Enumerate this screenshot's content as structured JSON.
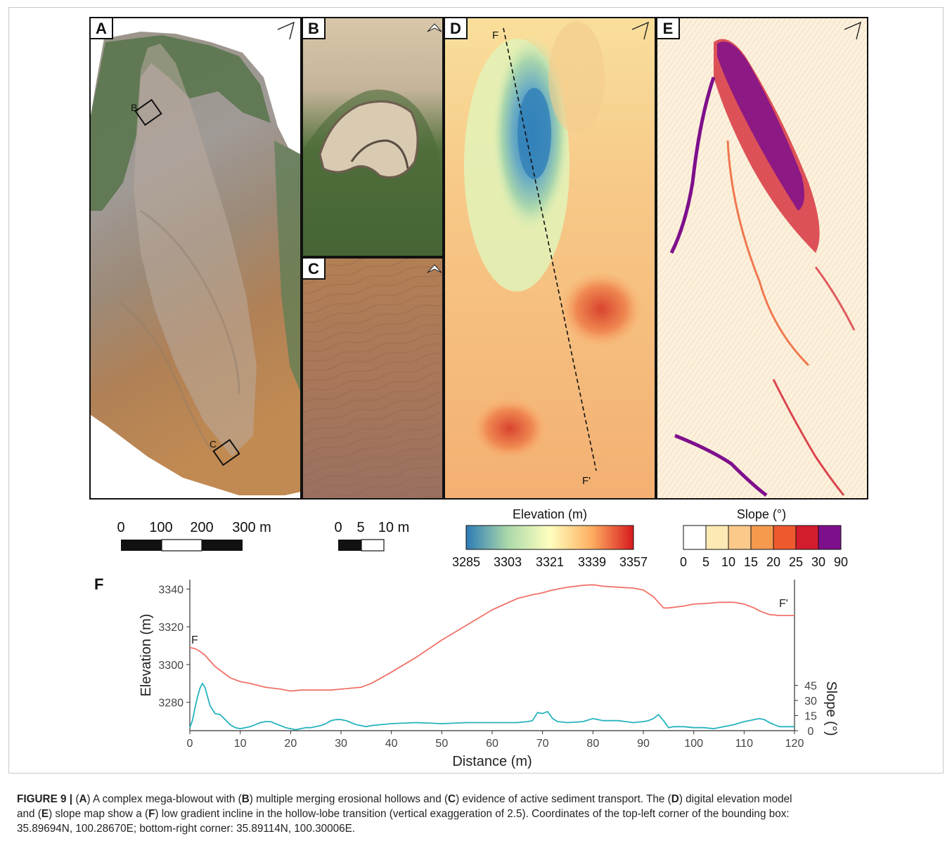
{
  "panels": {
    "A": "A",
    "B": "B",
    "C": "C",
    "D": "D",
    "E": "E",
    "F": "F"
  },
  "inset_labels": {
    "box_b": "B",
    "box_c": "C"
  },
  "profile_line": {
    "start": "F",
    "end": "F'"
  },
  "scalebar_a": {
    "ticks": [
      "0",
      "100",
      "200",
      "300 m"
    ]
  },
  "scalebar_bc": {
    "ticks": [
      "0",
      "5",
      "10 m"
    ]
  },
  "elevation_legend": {
    "title": "Elevation (m)",
    "ticks": [
      "3285",
      "3303",
      "3321",
      "3339",
      "3357"
    ],
    "colors": [
      "#2c7bb6",
      "#abd9a9",
      "#ffffbf",
      "#fdae61",
      "#d7191c"
    ]
  },
  "slope_legend": {
    "title": "Slope (°)",
    "ticks": [
      "0",
      "5",
      "10",
      "15",
      "20",
      "25",
      "30",
      "90"
    ],
    "colors": [
      "#ffffff",
      "#fde9b4",
      "#fbc98a",
      "#f59a4f",
      "#ee5a2e",
      "#d31c2c",
      "#7e0f8c"
    ]
  },
  "chart_data": {
    "type": "line",
    "xlabel": "Distance (m)",
    "ylabel": "Elevation (m)",
    "y2label": "Slope (°)",
    "xlim": [
      0,
      120
    ],
    "ylim": [
      3265,
      3345
    ],
    "x_ticks": [
      0,
      10,
      20,
      30,
      40,
      50,
      60,
      70,
      80,
      90,
      100,
      110,
      120
    ],
    "y_ticks": [
      3280,
      3300,
      3320,
      3340
    ],
    "y2_ticks": [
      0,
      15,
      30,
      45
    ],
    "y2_scale": "3265 m = 0°, 3289 m = 45°",
    "end_labels": {
      "start": "F",
      "end": "F'"
    },
    "series": [
      {
        "color": "#f07268",
        "x": [
          0,
          1,
          2,
          3,
          4,
          5,
          6,
          7,
          8,
          10,
          12,
          15,
          18,
          20,
          22,
          25,
          28,
          30,
          32,
          34,
          36,
          38,
          40,
          45,
          50,
          55,
          60,
          65,
          68,
          70,
          72,
          75,
          78,
          80,
          82,
          85,
          88,
          90,
          92,
          93,
          94,
          95,
          98,
          100,
          103,
          105,
          108,
          110,
          112,
          113,
          115,
          117,
          120
        ],
        "y": [
          3309,
          3308.5,
          3307,
          3305,
          3302,
          3299,
          3297,
          3295,
          3293,
          3291,
          3290,
          3288,
          3287,
          3286,
          3286.5,
          3286.5,
          3286.5,
          3287,
          3287.5,
          3288,
          3290,
          3293,
          3296,
          3304,
          3313,
          3321,
          3329,
          3335,
          3337,
          3338,
          3339.5,
          3341,
          3342,
          3342.3,
          3341.5,
          3341,
          3340.5,
          3339.5,
          3336,
          3333,
          3330,
          3330,
          3331,
          3332,
          3332.5,
          3333,
          3333,
          3332,
          3330,
          3328.5,
          3326.5,
          3326,
          3326
        ]
      },
      {
        "color": "#26b3bd",
        "x": [
          0,
          0.5,
          1,
          1.5,
          2,
          2.5,
          3,
          3.5,
          4,
          5,
          6,
          7,
          8,
          9,
          10,
          11,
          12,
          13,
          14,
          15,
          16,
          17,
          18,
          19,
          20,
          21,
          22,
          23,
          24,
          25,
          26,
          27,
          28,
          29,
          30,
          31,
          32,
          33,
          34,
          35,
          36,
          38,
          40,
          45,
          50,
          55,
          60,
          65,
          67,
          68,
          69,
          70,
          71,
          72,
          73,
          75,
          78,
          80,
          82,
          85,
          88,
          90,
          91,
          92,
          93,
          94,
          95,
          96,
          98,
          100,
          102,
          104,
          106,
          108,
          110,
          111,
          112,
          113,
          114,
          115,
          116,
          117,
          118,
          119,
          120
        ],
        "y": [
          3,
          10,
          22,
          33,
          42,
          47,
          43,
          34,
          25,
          17,
          16,
          11,
          6,
          3,
          2,
          3,
          4,
          6,
          8,
          9,
          9,
          7,
          5,
          3,
          2,
          1,
          2,
          3,
          3,
          4,
          5,
          7,
          10,
          11,
          11,
          10,
          8,
          6,
          5,
          4,
          5,
          6,
          7,
          8,
          7,
          8,
          8,
          8,
          9,
          10,
          18,
          17,
          19,
          12,
          9,
          8,
          9,
          12,
          10,
          10,
          8,
          9,
          10,
          12,
          16,
          10,
          3,
          4,
          4,
          3,
          3,
          2,
          4,
          6,
          9,
          10,
          11,
          12,
          11,
          8,
          6,
          4,
          4,
          4,
          4
        ]
      }
    ]
  },
  "caption": {
    "figure_label": "FIGURE 9 |",
    "p1": " (",
    "p1b": "A",
    "p2": ") A complex mega-blowout with (",
    "p2b": "B",
    "p3": ") multiple merging erosional hollows and (",
    "p3b": "C",
    "p4": ") evidence of active sediment transport. The (",
    "p4b": "D",
    "p5": ") digital elevation model",
    "p6": "and (",
    "p6b": "E",
    "p7": ") slope map show a (",
    "p7b": "F",
    "p8": ") low gradient incline in the hollow-lobe transition (vertical exaggeration of 2.5). Coordinates of the top-left corner of the bounding box:",
    "p9": "35.89694N, 100.28670E; bottom-right corner: 35.89114N, 100.30006E."
  }
}
